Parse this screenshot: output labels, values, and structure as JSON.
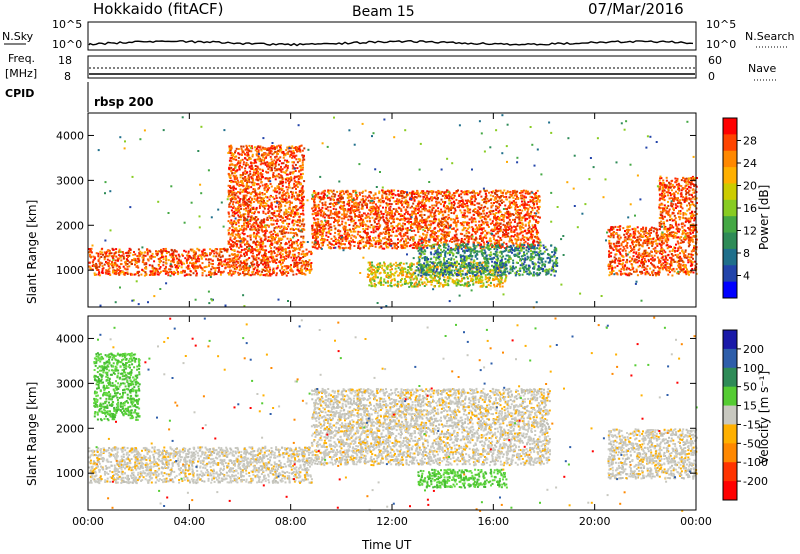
{
  "header": {
    "station": "Hokkaido (fitACF)",
    "beam": "Beam 15",
    "date": "07/Mar/2016"
  },
  "top_panels": {
    "nsky_label": "N.Sky",
    "nsearch_label": "N.Search",
    "nsky_ticks": [
      "10^5",
      "10^0"
    ],
    "nsky_right_ticks": [
      "10^5",
      "10^0"
    ],
    "freq_label_1": "Freq.",
    "freq_label_2": "[MHz]",
    "freq_ticks": [
      "18",
      "8"
    ],
    "nave_label": "Nave",
    "nave_ticks": [
      "60",
      "0"
    ],
    "cpid_label": "CPID",
    "cpid_value": "rbsp 200"
  },
  "chart_data": [
    {
      "type": "heatmap",
      "name": "power-panel",
      "ylabel": "Slant Range [km]",
      "xlabel": "",
      "y_ticks": [
        1000,
        2000,
        3000,
        4000
      ],
      "ylim": [
        180,
        4500
      ],
      "x_ticks": [
        "00:00",
        "04:00",
        "08:00",
        "12:00",
        "16:00",
        "20:00",
        "00:00"
      ],
      "xlim_hours": [
        0,
        24
      ],
      "colorbar": {
        "label": "Power [dB]",
        "ticks": [
          "28",
          "24",
          "20",
          "16",
          "12",
          "8",
          "4"
        ],
        "colors": [
          "#ff0000",
          "#ff4400",
          "#ff8800",
          "#ffb000",
          "#cccc00",
          "#88cc22",
          "#44a844",
          "#2e8b57",
          "#1f6f8b",
          "#2244aa",
          "#0000ff"
        ]
      },
      "echo_regions": [
        {
          "start_h": 0.0,
          "end_h": 8.8,
          "range_min_km": 900,
          "range_max_km": 1500,
          "level": "high"
        },
        {
          "start_h": 5.5,
          "end_h": 8.5,
          "range_min_km": 1500,
          "range_max_km": 3800,
          "level": "high"
        },
        {
          "start_h": 8.8,
          "end_h": 17.8,
          "range_min_km": 1500,
          "range_max_km": 2800,
          "level": "high"
        },
        {
          "start_h": 11.0,
          "end_h": 16.5,
          "range_min_km": 650,
          "range_max_km": 1200,
          "level": "medium"
        },
        {
          "start_h": 13.0,
          "end_h": 18.5,
          "range_min_km": 900,
          "range_max_km": 1600,
          "level": "low"
        },
        {
          "start_h": 20.5,
          "end_h": 24.0,
          "range_min_km": 900,
          "range_max_km": 2000,
          "level": "high"
        },
        {
          "start_h": 22.5,
          "end_h": 24.0,
          "range_min_km": 2000,
          "range_max_km": 3100,
          "level": "high"
        }
      ]
    },
    {
      "type": "heatmap",
      "name": "velocity-panel",
      "ylabel": "Slant Range [km]",
      "xlabel": "Time UT",
      "y_ticks": [
        1000,
        2000,
        3000,
        4000
      ],
      "ylim": [
        180,
        4500
      ],
      "x_ticks": [
        "00:00",
        "04:00",
        "08:00",
        "12:00",
        "16:00",
        "20:00",
        "00:00"
      ],
      "xlim_hours": [
        0,
        24
      ],
      "colorbar": {
        "label": "Velocity [m s⁻¹]",
        "ticks": [
          "200",
          "100",
          "50",
          "15",
          "-15",
          "-50",
          "-100",
          "-200"
        ],
        "colors": [
          "#1a1aa8",
          "#2e5eaa",
          "#2e8b57",
          "#55cc33",
          "#c8c8c0",
          "#ffb000",
          "#ff8800",
          "#ff3300",
          "#ff0000"
        ]
      },
      "echo_regions": [
        {
          "start_h": 0.0,
          "end_h": 8.8,
          "range_min_km": 800,
          "range_max_km": 1600,
          "level": "ground"
        },
        {
          "start_h": 8.8,
          "end_h": 18.2,
          "range_min_km": 1200,
          "range_max_km": 2900,
          "level": "ground"
        },
        {
          "start_h": 13.0,
          "end_h": 16.5,
          "range_min_km": 700,
          "range_max_km": 1100,
          "level": "positive"
        },
        {
          "start_h": 20.5,
          "end_h": 24.0,
          "range_min_km": 900,
          "range_max_km": 2000,
          "level": "ground"
        },
        {
          "start_h": 0.2,
          "end_h": 2.0,
          "range_min_km": 2200,
          "range_max_km": 3700,
          "level": "positive"
        }
      ]
    }
  ]
}
